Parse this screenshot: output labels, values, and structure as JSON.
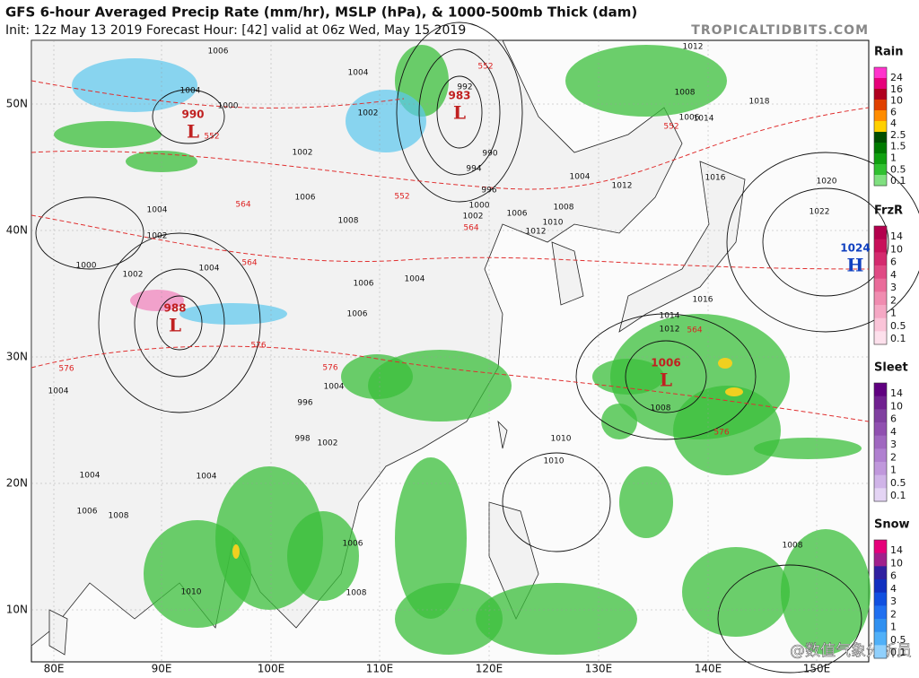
{
  "header": {
    "title": "GFS 6-hour Averaged Precip Rate (mm/hr), MSLP (hPa), & 1000-500mb Thick (dam)",
    "subtitle": "Init: 12z May 13 2019   Forecast Hour: [42]   valid at 06z Wed, May 15 2019",
    "site": "TROPICALTIDBITS.COM"
  },
  "map": {
    "lat_labels": [
      "50N",
      "40N",
      "30N",
      "20N",
      "10N"
    ],
    "lon_labels": [
      "80E",
      "90E",
      "100E",
      "110E",
      "120E",
      "130E",
      "140E",
      "150E"
    ],
    "pressure_centers": [
      {
        "value": "983",
        "symbol": "L"
      },
      {
        "value": "990",
        "symbol": "L"
      },
      {
        "value": "988",
        "symbol": "L"
      },
      {
        "value": "1006",
        "symbol": "L"
      },
      {
        "value": "1024",
        "symbol": "H"
      }
    ],
    "isobar_labels": [
      "1006",
      "1004",
      "1004",
      "1002",
      "1000",
      "1002",
      "1006",
      "1004",
      "1002",
      "1008",
      "1000",
      "1002",
      "1004",
      "1006",
      "1004",
      "1006",
      "1004",
      "996",
      "998",
      "1002",
      "1004",
      "1004",
      "1006",
      "1008",
      "1004",
      "1010",
      "1006",
      "1008",
      "1010",
      "1010",
      "1008",
      "1012",
      "1014",
      "1016",
      "1016",
      "1018",
      "1020",
      "1022",
      "1008",
      "1012",
      "1012",
      "1010",
      "1008",
      "1006",
      "1004",
      "1002",
      "1000",
      "992",
      "990",
      "994",
      "996",
      "1012",
      "1008",
      "1006",
      "1014"
    ],
    "thickness_labels": [
      "552",
      "564",
      "564",
      "576",
      "576",
      "576",
      "552",
      "564",
      "552",
      "564",
      "576",
      "552"
    ]
  },
  "legend": [
    {
      "name": "Rain",
      "labels": [
        "24",
        "16",
        "10",
        "6",
        "4",
        "2.5",
        "1.5",
        "1",
        "0.5",
        "0.1"
      ]
    },
    {
      "name": "FrzR",
      "labels": [
        "14",
        "10",
        "6",
        "4",
        "3",
        "2",
        "1",
        "0.5",
        "0.1"
      ]
    },
    {
      "name": "Sleet",
      "labels": [
        "14",
        "10",
        "6",
        "4",
        "3",
        "2",
        "1",
        "0.5",
        "0.1"
      ]
    },
    {
      "name": "Snow",
      "labels": [
        "14",
        "10",
        "6",
        "4",
        "3",
        "2",
        "1",
        "0.5",
        "0.1"
      ]
    }
  ],
  "watermark": "@数值气象分析员"
}
